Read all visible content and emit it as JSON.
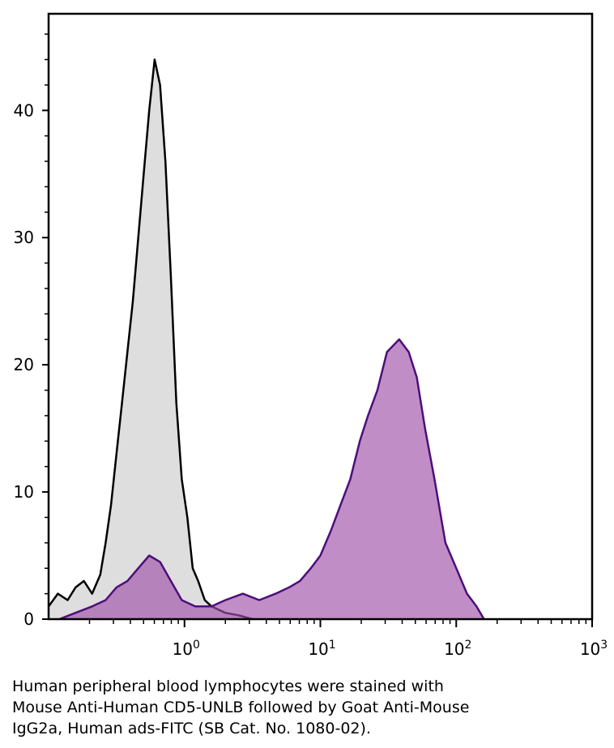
{
  "chart_data": {
    "type": "histogram-overlay",
    "log_x": true,
    "xlim": [
      0.1,
      1000
    ],
    "ylim": [
      0,
      47.6
    ],
    "xticks": [
      {
        "value": 1,
        "label": "10",
        "exponent": "0"
      },
      {
        "value": 10,
        "label": "10",
        "exponent": "1"
      },
      {
        "value": 100,
        "label": "10",
        "exponent": "2"
      },
      {
        "value": 1000,
        "label": "10",
        "exponent": "3"
      }
    ],
    "yticks": [
      0,
      10,
      20,
      30,
      40
    ],
    "series": [
      {
        "color": "#000000",
        "fill": "#dedede",
        "x": [
          0.1,
          0.117,
          0.138,
          0.158,
          0.182,
          0.209,
          0.24,
          0.263,
          0.288,
          0.316,
          0.347,
          0.38,
          0.417,
          0.457,
          0.501,
          0.55,
          0.603,
          0.661,
          0.724,
          0.794,
          0.871,
          0.955,
          1.05,
          1.15,
          1.26,
          1.41,
          1.58,
          2,
          2.51,
          3.16
        ],
        "values": [
          1,
          2,
          1.5,
          2.5,
          3,
          2,
          3.5,
          6,
          9,
          13,
          17,
          21,
          25,
          30,
          35,
          40,
          44,
          42,
          36,
          27,
          17,
          11,
          8,
          4,
          3,
          1.5,
          1,
          0.5,
          0.3,
          0
        ]
      },
      {
        "color": "#4b0f7a",
        "fill": "#a050a8",
        "x": [
          0.12,
          0.158,
          0.209,
          0.263,
          0.316,
          0.38,
          0.457,
          0.55,
          0.661,
          0.794,
          0.955,
          1.2,
          1.58,
          2,
          2.69,
          3.55,
          4.68,
          5.89,
          7.08,
          8.51,
          10,
          12,
          14.1,
          16.6,
          19.5,
          22.4,
          26.3,
          30.9,
          38,
          44.7,
          51.3,
          58.9,
          69.2,
          83.2,
          100,
          120,
          141,
          160
        ],
        "values": [
          0,
          0.5,
          1,
          1.5,
          2.5,
          3,
          4,
          5,
          4.5,
          3,
          1.5,
          1,
          1,
          1.5,
          2,
          1.5,
          2,
          2.5,
          3,
          4,
          5,
          7,
          9,
          11,
          14,
          16,
          18,
          21,
          22,
          21,
          19,
          15,
          11,
          6,
          4,
          2,
          1,
          0
        ]
      }
    ],
    "caption_lines": [
      "Human peripheral blood lymphocytes were stained with",
      "Mouse Anti-Human CD5-UNLB followed by Goat Anti-Mouse",
      "IgG2a, Human ads-FITC (SB Cat. No. 1080-02)."
    ]
  }
}
